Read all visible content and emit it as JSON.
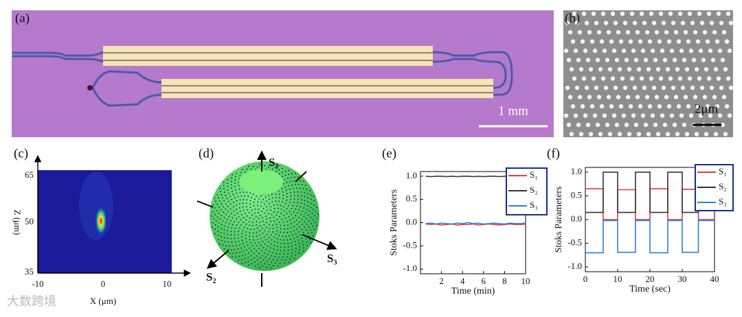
{
  "panels": {
    "a": {
      "label": "(a)",
      "scale": "1 mm"
    },
    "b": {
      "label": "(b)",
      "scale": "2μm"
    },
    "c": {
      "label": "(c)",
      "yticks": [
        "65",
        "50",
        "35"
      ],
      "xticks": [
        "-10",
        "0",
        "10"
      ],
      "ylabel": "Z (μm)",
      "xlabel": "X (μm)"
    },
    "d": {
      "label": "(d)",
      "axes": [
        "S₁",
        "S₂",
        "S₃"
      ]
    },
    "watermark": "大数跨境"
  },
  "chart_data": [
    {
      "type": "line",
      "title": "(e)",
      "xlabel": "Time (min)",
      "ylabel": "Stoks Parameters",
      "x": [
        0.5,
        1,
        1.5,
        2,
        2.5,
        3,
        3.5,
        4,
        4.5,
        5,
        5.5,
        6,
        6.5,
        7,
        7.5,
        8,
        8.5,
        9,
        9.5,
        10
      ],
      "series": [
        {
          "name": "S₁",
          "color": "#e8383d",
          "values": [
            -0.03,
            -0.04,
            -0.03,
            -0.05,
            -0.04,
            -0.03,
            -0.05,
            -0.04,
            -0.04,
            -0.03,
            -0.05,
            -0.04,
            -0.03,
            -0.04,
            -0.05,
            -0.04,
            -0.03,
            -0.04,
            -0.04,
            -0.03
          ]
        },
        {
          "name": "S₂",
          "color": "#333333",
          "values": [
            1.0,
            0.99,
            1.0,
            1.0,
            0.99,
            1.0,
            0.99,
            1.0,
            1.0,
            0.99,
            1.0,
            0.99,
            1.0,
            1.0,
            0.99,
            1.0,
            1.0,
            0.99,
            1.0,
            1.0
          ]
        },
        {
          "name": "S₃",
          "color": "#2a7fd4",
          "values": [
            -0.02,
            -0.01,
            -0.03,
            -0.01,
            -0.02,
            -0.03,
            -0.01,
            -0.02,
            0.0,
            -0.02,
            -0.01,
            -0.03,
            -0.02,
            -0.01,
            -0.02,
            -0.03,
            -0.01,
            -0.02,
            -0.02,
            -0.01
          ]
        }
      ],
      "xlim": [
        0,
        10
      ],
      "xticks": [
        2,
        4,
        6,
        8,
        10
      ],
      "ylim": [
        -1.1,
        1.1
      ],
      "yticks": [
        {
          "value": -1,
          "label": "-1.0"
        },
        {
          "value": -0.5,
          "label": "-0.5"
        },
        {
          "value": 0,
          "label": "0.0"
        },
        {
          "value": 0.5,
          "label": "0.5"
        },
        {
          "value": 1,
          "label": "1.0"
        }
      ]
    },
    {
      "type": "line",
      "title": "(f)",
      "xlabel": "Time (sec)",
      "ylabel": "Stoks Parameters",
      "x": [
        0,
        5.5,
        5.5,
        10,
        10,
        15.5,
        15.5,
        20,
        20,
        25.5,
        25.5,
        30,
        30,
        35,
        35,
        40
      ],
      "series": [
        {
          "name": "S₁",
          "color": "#e8383d",
          "values": [
            0.65,
            0.65,
            0.0,
            0.0,
            0.63,
            0.63,
            0.0,
            0.0,
            0.65,
            0.65,
            0.0,
            0.0,
            0.64,
            0.64,
            0.0,
            0.0
          ]
        },
        {
          "name": "S₂",
          "color": "#333333",
          "values": [
            0.15,
            0.15,
            1.0,
            1.0,
            0.15,
            0.15,
            1.0,
            1.0,
            0.15,
            0.15,
            1.0,
            1.0,
            0.15,
            0.15,
            1.0,
            1.0
          ]
        },
        {
          "name": "S₃",
          "color": "#2a7fd4",
          "values": [
            -0.7,
            -0.7,
            -0.02,
            -0.02,
            -0.69,
            -0.69,
            -0.02,
            -0.02,
            -0.7,
            -0.7,
            -0.02,
            -0.02,
            -0.69,
            -0.69,
            -0.02,
            -0.02
          ]
        }
      ],
      "xlim": [
        0,
        40
      ],
      "xticks": [
        0,
        10,
        20,
        30,
        40
      ],
      "ylim": [
        -1.1,
        1.1
      ],
      "yticks": [
        {
          "value": -1,
          "label": "-1.0"
        },
        {
          "value": -0.5,
          "label": "-0.5"
        },
        {
          "value": 0,
          "label": "0.0"
        },
        {
          "value": 0.5,
          "label": "0.5"
        },
        {
          "value": 1,
          "label": "1.0"
        }
      ]
    }
  ]
}
